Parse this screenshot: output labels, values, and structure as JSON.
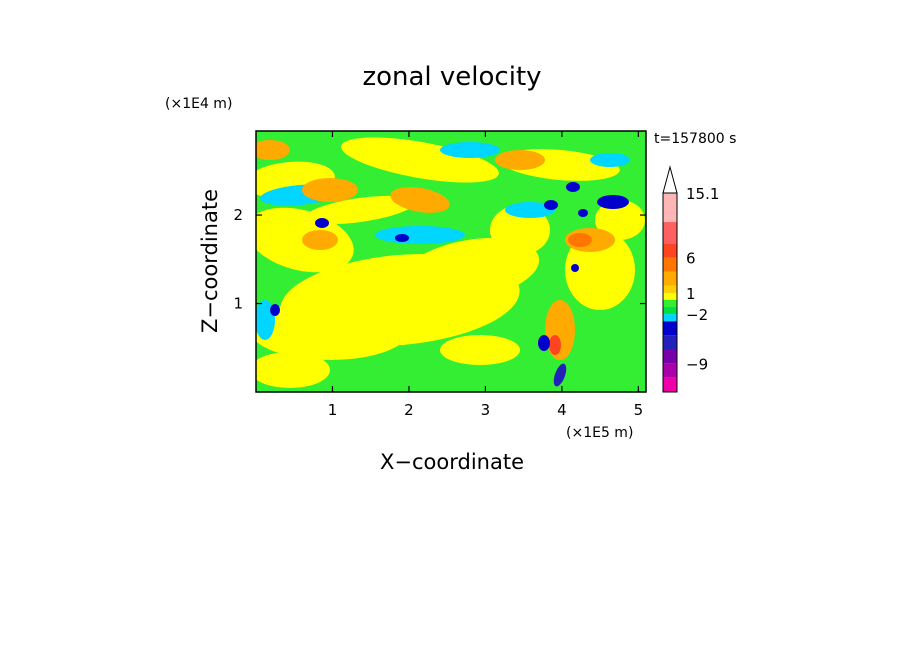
{
  "chart_data": {
    "type": "heatmap",
    "title": "zonal velocity",
    "xlabel": "X−coordinate",
    "ylabel": "Z−coordinate",
    "x_scale_label": "(×1E5 m)",
    "y_scale_label": "(×1E4 m)",
    "time_label": "t=157800 s",
    "xlim": [
      0,
      5.1
    ],
    "ylim": [
      0,
      2.95
    ],
    "x_ticks": [
      1,
      2,
      3,
      4,
      5
    ],
    "x_tick_labels": [
      "1",
      "2",
      "3",
      "4",
      "5"
    ],
    "y_ticks": [
      1,
      2
    ],
    "y_tick_labels": [
      "1",
      "2"
    ],
    "grid": false,
    "colorbar": {
      "levels": [
        -13,
        -11,
        -9,
        -7,
        -5,
        -3,
        -2,
        -1,
        0,
        1,
        2,
        4,
        6,
        8,
        11,
        15.1
      ],
      "colors": [
        "#ee00aa",
        "#aa00aa",
        "#7700aa",
        "#2222bb",
        "#0000cc",
        "#00d6ff",
        "#00e040",
        "#33ee33",
        "#ffff00",
        "#ffd000",
        "#ffaa00",
        "#ff7700",
        "#ff4422",
        "#ff6060",
        "#ffb6b6"
      ],
      "tick_labels": [
        {
          "value": 15.1,
          "label": "15.1"
        },
        {
          "value": 6,
          "label": "6"
        },
        {
          "value": 1,
          "label": "1"
        },
        {
          "value": -2,
          "label": "−2"
        },
        {
          "value": -9,
          "label": "−9"
        }
      ],
      "extend_max": true
    }
  }
}
